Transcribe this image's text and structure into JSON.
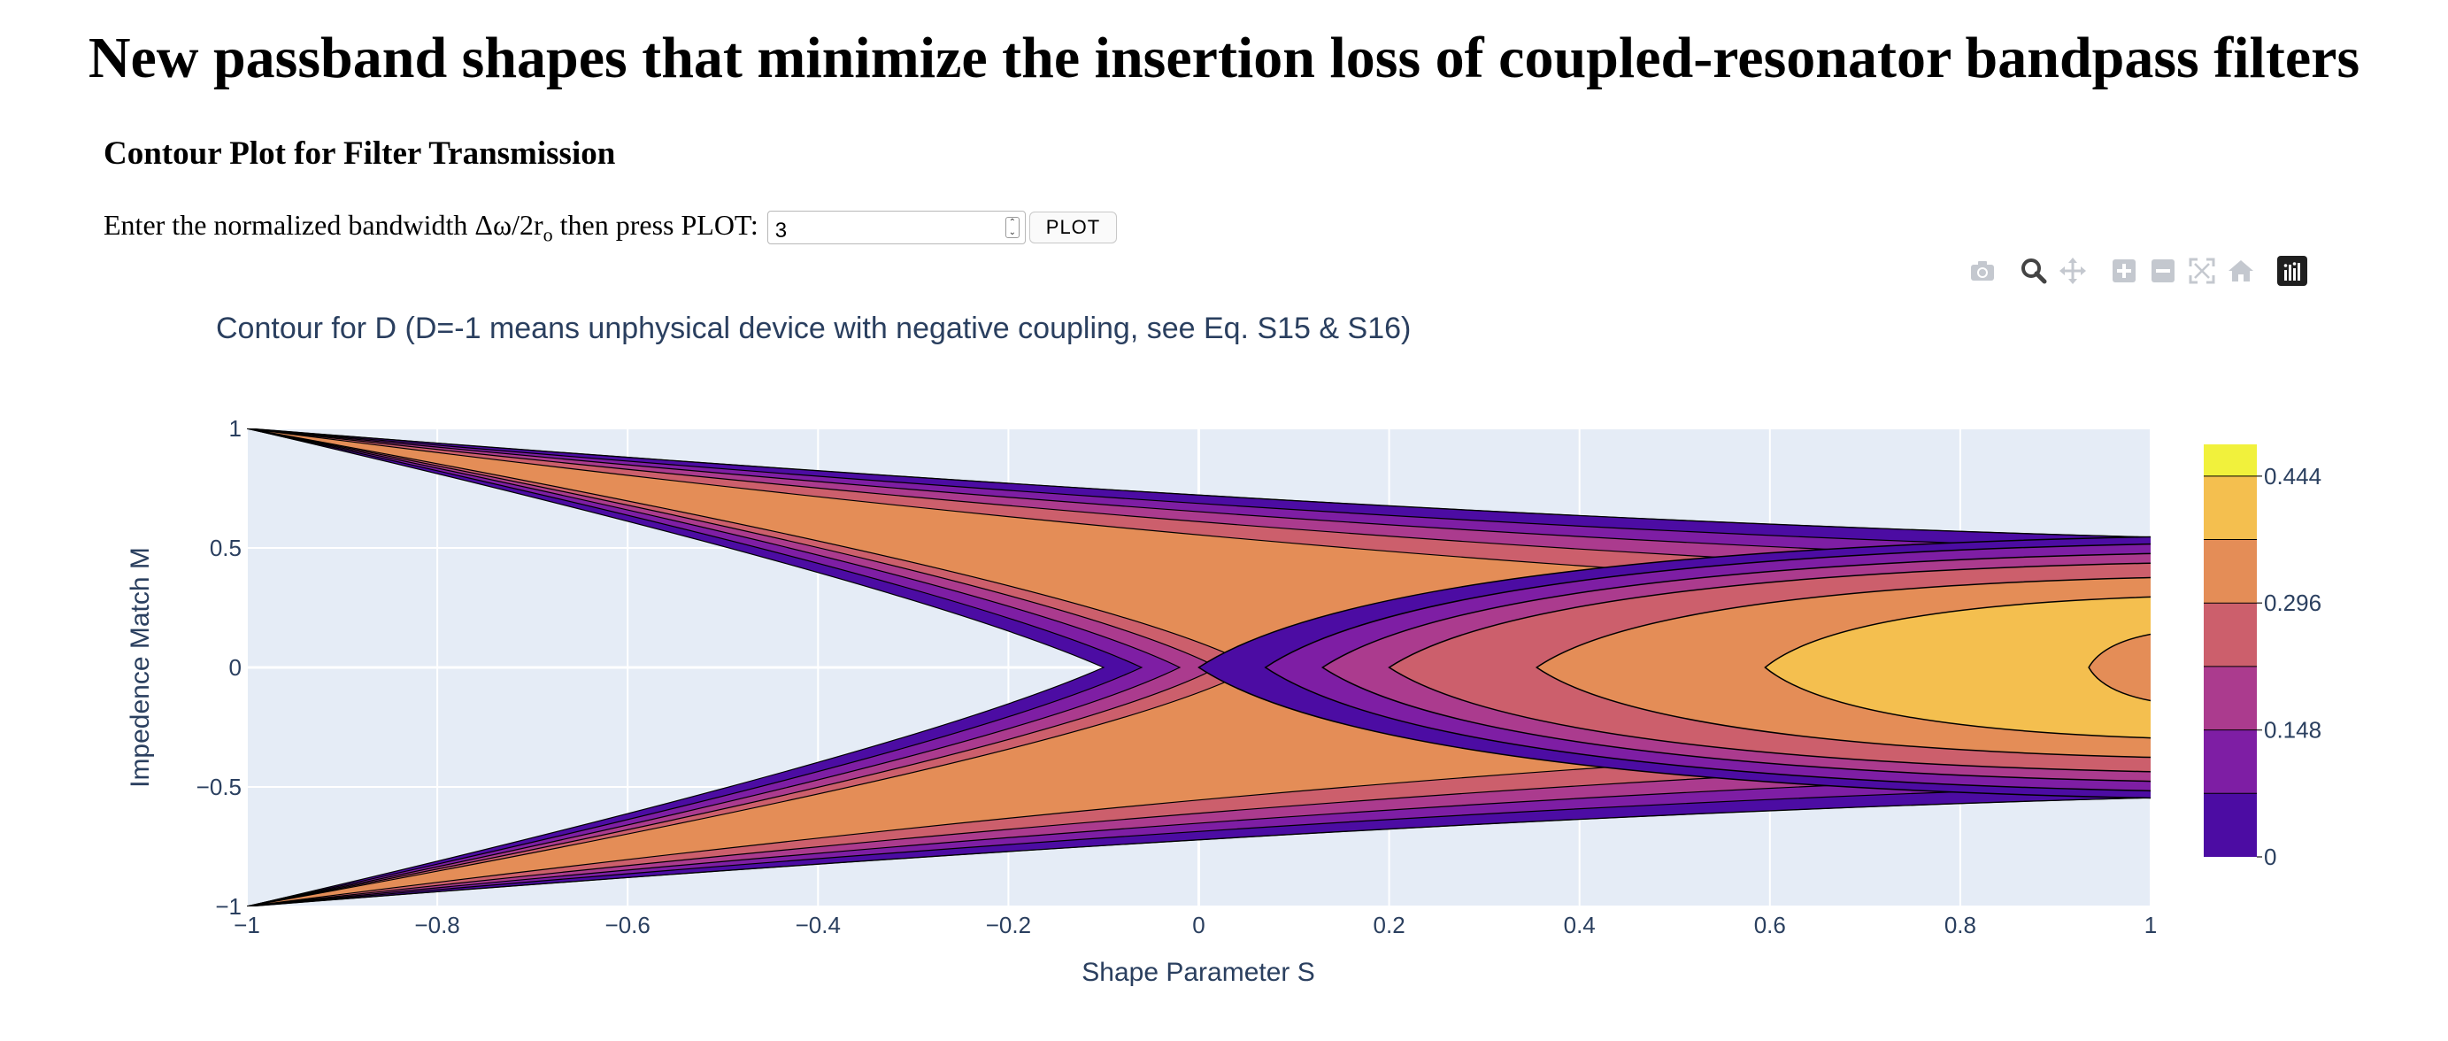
{
  "page": {
    "title": "New passband shapes that minimize the insertion loss of coupled-resonator bandpass filters",
    "section_heading": "Contour Plot for Filter Transmission"
  },
  "form": {
    "prompt_before": "Enter the normalized bandwidth Δω/2r",
    "prompt_sub": "o",
    "prompt_after": " then press PLOT:",
    "input_value": "3",
    "button_label": "PLOT"
  },
  "modebar": {
    "icons": [
      "camera-icon",
      "zoom-icon",
      "pan-icon",
      "zoom-in-icon",
      "zoom-out-icon",
      "autoscale-icon",
      "reset-axes-icon",
      "plotly-logo-icon"
    ]
  },
  "chart_data": {
    "type": "contour",
    "title": "Contour for D (D=-1 means unphysical device with negative coupling, see Eq. S15 & S16)",
    "xlabel": "Shape Parameter S",
    "ylabel": "Impedence Match M",
    "xlim": [
      -1,
      1
    ],
    "ylim": [
      -1,
      1
    ],
    "x_ticks": [
      "−1",
      "−0.8",
      "−0.6",
      "−0.4",
      "−0.2",
      "0",
      "0.2",
      "0.4",
      "0.6",
      "0.8",
      "1"
    ],
    "y_ticks": [
      "1",
      "0.5",
      "0",
      "−0.5",
      "−1"
    ],
    "grid": true,
    "colorbar": {
      "levels": [
        0,
        0.074,
        0.148,
        0.222,
        0.296,
        0.37,
        0.444
      ],
      "tick_labels": [
        "0",
        "0.148",
        "0.296",
        "0.444"
      ],
      "colors": [
        "#4c0ca3",
        "#7e1ea4",
        "#ab3b8e",
        "#cc5f6c",
        "#e48d57",
        "#f4bf4f",
        "#f1f13c"
      ]
    },
    "contour_vertex_s": [
      0,
      0.07,
      0.13,
      0.2,
      0.355,
      0.595,
      0.935
    ],
    "contour_right_edge_m": [
      0.53,
      0.47,
      0.4,
      0.28,
      0.24,
      0.16,
      0.1,
      0.05
    ],
    "domain_edge_s_upper": [
      -1,
      -0.6,
      -0.2,
      0,
      0.2,
      0.6,
      1
    ],
    "domain_edge_m_upper": [
      1,
      0.52,
      0.3,
      0.22,
      0.15,
      0.05,
      0.01
    ]
  }
}
